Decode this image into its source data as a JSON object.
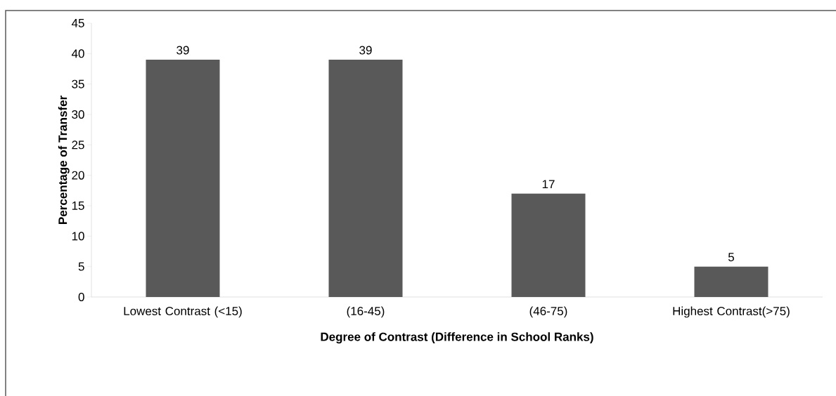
{
  "chart_data": {
    "type": "bar",
    "categories": [
      "Lowest Contrast (<15)",
      "(16-45)",
      "(46-75)",
      "Highest Contrast(>75)"
    ],
    "values": [
      39,
      39,
      17,
      5
    ],
    "color": "#595959",
    "ylim": [
      0,
      45
    ],
    "yticks": [
      0,
      5,
      10,
      15,
      20,
      25,
      30,
      35,
      40,
      45
    ],
    "xlabel": "Degree of Contrast  (Difference  in School Ranks)",
    "ylabel": "Percentage of Transfer",
    "data_labels": true,
    "grid": false
  }
}
